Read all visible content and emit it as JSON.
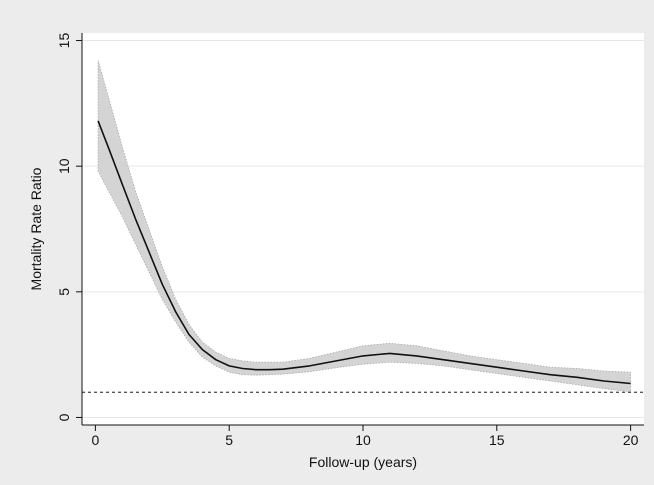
{
  "chart_data": {
    "type": "line",
    "title": "",
    "xlabel": "Follow-up (years)",
    "ylabel": "Mortality Rate Ratio",
    "xlim": [
      -0.5,
      20.5
    ],
    "ylim": [
      -0.3,
      15.3
    ],
    "xticks": [
      0,
      5,
      10,
      15,
      20
    ],
    "yticks": [
      0,
      5,
      10,
      15
    ],
    "grid": "horizontal",
    "reference_line": {
      "y": 1,
      "style": "dotted"
    },
    "series": [
      {
        "x": [
          0.1,
          0.5,
          1,
          1.5,
          2,
          2.5,
          3,
          3.5,
          4,
          4.5,
          5,
          5.5,
          6,
          6.5,
          7,
          8,
          9,
          10,
          11,
          12,
          13,
          14,
          15,
          16,
          17,
          18,
          19,
          20
        ],
        "y": [
          11.8,
          10.7,
          9.3,
          7.9,
          6.6,
          5.3,
          4.2,
          3.3,
          2.7,
          2.3,
          2.05,
          1.95,
          1.9,
          1.9,
          1.92,
          2.05,
          2.25,
          2.45,
          2.55,
          2.45,
          2.3,
          2.15,
          2.0,
          1.85,
          1.7,
          1.6,
          1.45,
          1.35
        ],
        "lower": [
          9.8,
          9.0,
          8.0,
          6.9,
          5.8,
          4.7,
          3.8,
          3.0,
          2.4,
          2.05,
          1.8,
          1.7,
          1.68,
          1.7,
          1.72,
          1.82,
          1.98,
          2.12,
          2.2,
          2.15,
          2.05,
          1.9,
          1.75,
          1.6,
          1.45,
          1.3,
          1.15,
          1.02
        ],
        "upper": [
          14.2,
          12.7,
          10.8,
          9.0,
          7.5,
          6.0,
          4.7,
          3.7,
          3.0,
          2.6,
          2.35,
          2.25,
          2.2,
          2.2,
          2.2,
          2.35,
          2.6,
          2.85,
          2.95,
          2.85,
          2.65,
          2.45,
          2.3,
          2.15,
          2.0,
          1.95,
          1.85,
          1.8
        ]
      }
    ]
  }
}
